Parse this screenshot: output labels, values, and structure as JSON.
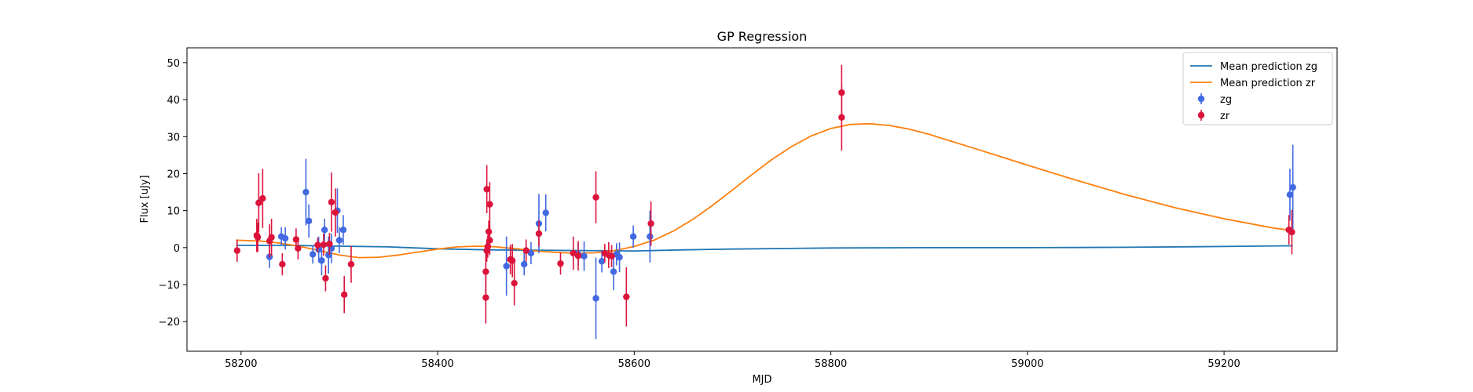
{
  "chart_data": {
    "type": "scatter",
    "title": "GP Regression",
    "xlabel": "MJD",
    "ylabel": "Flux [uJy]",
    "xlim": [
      58145,
      59315
    ],
    "ylim": [
      -28,
      54
    ],
    "xticks": [
      58200,
      58400,
      58600,
      58800,
      59000,
      59200
    ],
    "yticks": [
      -20,
      -10,
      0,
      10,
      20,
      30,
      40,
      50
    ],
    "grid": false,
    "legend_position": "top-right",
    "colors": {
      "zg_line": "#1f77b4",
      "zr_line": "#ff7f0e",
      "zg_points": "#4169e1",
      "zr_points": "#dc143c"
    },
    "legend": [
      {
        "label": "Mean prediction zg",
        "kind": "line",
        "color": "#1f77b4"
      },
      {
        "label": "Mean prediction zr",
        "kind": "line",
        "color": "#ff7f0e"
      },
      {
        "label": "zg",
        "kind": "errorbar",
        "color": "#4169e1"
      },
      {
        "label": "zr",
        "kind": "errorbar",
        "color": "#dc143c"
      }
    ],
    "series": [
      {
        "name": "Mean prediction zg",
        "kind": "line",
        "x": [
          58195,
          58250,
          58300,
          58350,
          58400,
          58450,
          58500,
          58550,
          58600,
          58650,
          58700,
          58800,
          58900,
          59000,
          59100,
          59200,
          59270
        ],
        "y": [
          0.6,
          0.6,
          0.4,
          0.2,
          -0.3,
          -0.6,
          -0.7,
          -0.8,
          -0.9,
          -0.6,
          -0.4,
          -0.1,
          0.0,
          0.0,
          0.1,
          0.3,
          0.5
        ]
      },
      {
        "name": "Mean prediction zr",
        "kind": "line",
        "x": [
          58195,
          58220,
          58240,
          58260,
          58280,
          58300,
          58320,
          58340,
          58360,
          58380,
          58400,
          58420,
          58440,
          58460,
          58480,
          58500,
          58520,
          58540,
          58560,
          58580,
          58600,
          58620,
          58640,
          58660,
          58680,
          58700,
          58720,
          58740,
          58760,
          58780,
          58800,
          58820,
          58840,
          58860,
          58880,
          58900,
          58950,
          59000,
          59050,
          59100,
          59150,
          59200,
          59250,
          59270
        ],
        "y": [
          2.0,
          1.8,
          1.2,
          0.3,
          -0.8,
          -2.0,
          -2.7,
          -2.6,
          -2.0,
          -1.2,
          -0.4,
          0.2,
          0.4,
          0.2,
          -0.3,
          -0.9,
          -1.3,
          -1.5,
          -1.4,
          -0.8,
          0.3,
          2.0,
          4.5,
          7.7,
          11.5,
          15.6,
          19.8,
          23.8,
          27.3,
          30.2,
          32.2,
          33.3,
          33.5,
          33.0,
          32.0,
          30.6,
          26.5,
          22.3,
          18.2,
          14.3,
          10.8,
          7.8,
          5.3,
          4.6
        ]
      },
      {
        "name": "zg",
        "kind": "errorbar",
        "points": [
          {
            "x": 58229,
            "y": -2.5,
            "err": 3.0
          },
          {
            "x": 58241,
            "y": 3.0,
            "err": 2.5
          },
          {
            "x": 58245,
            "y": 2.5,
            "err": 3.0
          },
          {
            "x": 58266,
            "y": 15.0,
            "err": 9.0
          },
          {
            "x": 58269,
            "y": 7.2,
            "err": 4.5
          },
          {
            "x": 58273,
            "y": -1.8,
            "err": 2.5
          },
          {
            "x": 58279,
            "y": -0.5,
            "err": 3.5
          },
          {
            "x": 58282,
            "y": -3.5,
            "err": 4.0
          },
          {
            "x": 58285,
            "y": 4.8,
            "err": 3.0
          },
          {
            "x": 58289,
            "y": -2.0,
            "err": 5.0
          },
          {
            "x": 58292,
            "y": -0.2,
            "err": 4.0
          },
          {
            "x": 58298,
            "y": 10.0,
            "err": 6.0
          },
          {
            "x": 58300,
            "y": 2.0,
            "err": 3.5
          },
          {
            "x": 58304,
            "y": 4.8,
            "err": 4.0
          },
          {
            "x": 58470,
            "y": -5.0,
            "err": 8.0
          },
          {
            "x": 58488,
            "y": -4.5,
            "err": 3.0
          },
          {
            "x": 58495,
            "y": -1.5,
            "err": 3.0
          },
          {
            "x": 58503,
            "y": 6.5,
            "err": 8.0
          },
          {
            "x": 58510,
            "y": 9.4,
            "err": 5.0
          },
          {
            "x": 58543,
            "y": -1.8,
            "err": 3.0
          },
          {
            "x": 58549,
            "y": -2.3,
            "err": 4.0
          },
          {
            "x": 58561,
            "y": -13.7,
            "err": 11.0
          },
          {
            "x": 58567,
            "y": -3.7,
            "err": 3.0
          },
          {
            "x": 58579,
            "y": -6.5,
            "err": 5.0
          },
          {
            "x": 58582,
            "y": -1.8,
            "err": 3.0
          },
          {
            "x": 58585,
            "y": -2.6,
            "err": 4.0
          },
          {
            "x": 58599,
            "y": 3.0,
            "err": 3.0
          },
          {
            "x": 58616,
            "y": 3.0,
            "err": 7.0
          },
          {
            "x": 59267,
            "y": 14.3,
            "err": 7.0
          },
          {
            "x": 59270,
            "y": 16.3,
            "err": 11.5
          }
        ]
      },
      {
        "name": "zr",
        "kind": "errorbar",
        "points": [
          {
            "x": 58196,
            "y": -0.8,
            "err": 3.0
          },
          {
            "x": 58216,
            "y": 3.3,
            "err": 4.5
          },
          {
            "x": 58217,
            "y": 2.8,
            "err": 4.0
          },
          {
            "x": 58218,
            "y": 12.1,
            "err": 8.0
          },
          {
            "x": 58222,
            "y": 13.3,
            "err": 8.0
          },
          {
            "x": 58229,
            "y": 1.8,
            "err": 4.5
          },
          {
            "x": 58231,
            "y": 2.8,
            "err": 5.0
          },
          {
            "x": 58242,
            "y": -4.5,
            "err": 3.0
          },
          {
            "x": 58256,
            "y": 2.2,
            "err": 3.0
          },
          {
            "x": 58258,
            "y": -0.2,
            "err": 3.0
          },
          {
            "x": 58278,
            "y": 0.7,
            "err": 2.0
          },
          {
            "x": 58284,
            "y": 0.8,
            "err": 3.0
          },
          {
            "x": 58286,
            "y": -8.3,
            "err": 3.5
          },
          {
            "x": 58290,
            "y": 1.0,
            "err": 3.0
          },
          {
            "x": 58292,
            "y": 12.3,
            "err": 8.0
          },
          {
            "x": 58296,
            "y": 9.5,
            "err": 6.5
          },
          {
            "x": 58305,
            "y": -12.7,
            "err": 5.0
          },
          {
            "x": 58312,
            "y": -4.5,
            "err": 5.0
          },
          {
            "x": 58449,
            "y": -13.5,
            "err": 7.0
          },
          {
            "x": 58449,
            "y": -6.5,
            "err": 6.0
          },
          {
            "x": 58450,
            "y": 15.8,
            "err": 6.5
          },
          {
            "x": 58450,
            "y": -0.8,
            "err": 3.0
          },
          {
            "x": 58451,
            "y": 0.3,
            "err": 3.0
          },
          {
            "x": 58452,
            "y": 4.3,
            "err": 3.0
          },
          {
            "x": 58453,
            "y": 11.7,
            "err": 6.0
          },
          {
            "x": 58453,
            "y": 2.0,
            "err": 4.0
          },
          {
            "x": 58474,
            "y": -3.2,
            "err": 4.0
          },
          {
            "x": 58476,
            "y": -3.5,
            "err": 4.5
          },
          {
            "x": 58478,
            "y": -9.6,
            "err": 6.0
          },
          {
            "x": 58490,
            "y": -0.8,
            "err": 3.0
          },
          {
            "x": 58503,
            "y": 3.8,
            "err": 3.5
          },
          {
            "x": 58525,
            "y": -4.3,
            "err": 3.0
          },
          {
            "x": 58538,
            "y": -1.5,
            "err": 4.5
          },
          {
            "x": 58543,
            "y": -2.2,
            "err": 4.0
          },
          {
            "x": 58561,
            "y": 13.6,
            "err": 7.0
          },
          {
            "x": 58570,
            "y": -1.5,
            "err": 2.5
          },
          {
            "x": 58574,
            "y": -2.0,
            "err": 3.5
          },
          {
            "x": 58577,
            "y": -2.3,
            "err": 3.0
          },
          {
            "x": 58592,
            "y": -13.3,
            "err": 8.0
          },
          {
            "x": 58617,
            "y": 6.5,
            "err": 6.0
          },
          {
            "x": 58811,
            "y": 41.9,
            "err": 7.5
          },
          {
            "x": 58811,
            "y": 35.2,
            "err": 9.0
          },
          {
            "x": 59266,
            "y": 4.8,
            "err": 4.0
          },
          {
            "x": 59269,
            "y": 4.2,
            "err": 6.0
          }
        ]
      }
    ]
  }
}
